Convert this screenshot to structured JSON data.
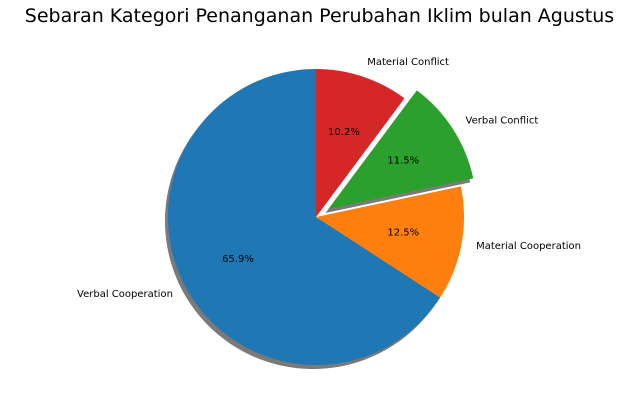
{
  "chart_data": {
    "type": "pie",
    "title": "Sebaran Kategori Penanganan Perubahan Iklim bulan Agustus",
    "slices": [
      {
        "label": "Verbal Cooperation",
        "value": 65.9,
        "pct_text": "65.9%",
        "color": "#1f77b4",
        "explode": 0
      },
      {
        "label": "Material Cooperation",
        "value": 12.5,
        "pct_text": "12.5%",
        "color": "#ff7f0e",
        "explode": 0
      },
      {
        "label": "Verbal Conflict",
        "value": 11.5,
        "pct_text": "11.5%",
        "color": "#2ca02c",
        "explode": 0.1
      },
      {
        "label": "Material Conflict",
        "value": 10.2,
        "pct_text": "10.2%",
        "color": "#d62728",
        "explode": 0
      }
    ],
    "start_angle": 90,
    "direction": "counterclockwise",
    "shadow": true
  }
}
